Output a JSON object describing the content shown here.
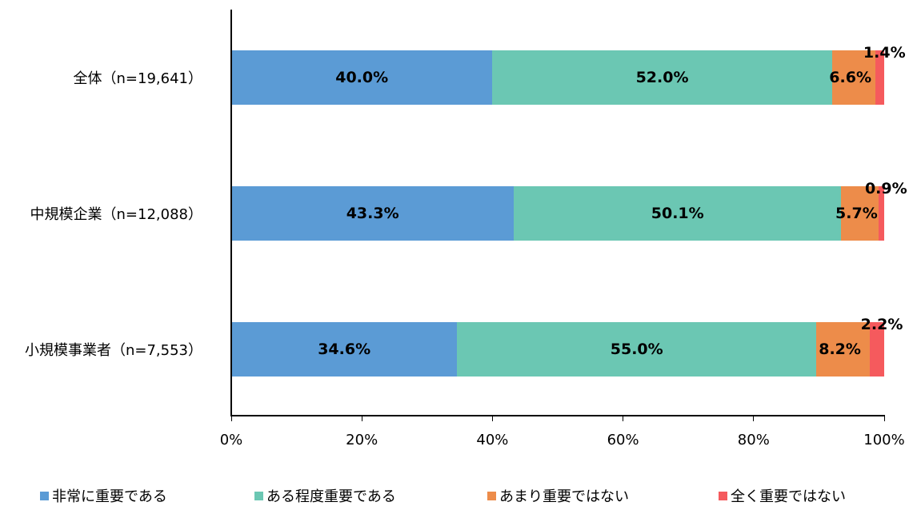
{
  "chart_data": {
    "type": "bar",
    "orientation": "horizontal",
    "stacked": true,
    "title": "",
    "xlabel": "",
    "ylabel": "",
    "xlim": [
      0,
      100
    ],
    "grid": false,
    "legend_position": "bottom",
    "x_ticks": [
      "0%",
      "20%",
      "40%",
      "60%",
      "80%",
      "100%"
    ],
    "categories": [
      "全体（n=19,641）",
      "中規模企業（n=12,088）",
      "小規模事業者（n=7,553）"
    ],
    "series": [
      {
        "name": "非常に重要である",
        "color": "#5b9bd5",
        "values": [
          40.0,
          43.3,
          34.6
        ],
        "labels": [
          "40.0%",
          "43.3%",
          "34.6%"
        ]
      },
      {
        "name": "ある程度重要である",
        "color": "#6bc7b3",
        "values": [
          52.0,
          50.1,
          55.0
        ],
        "labels": [
          "52.0%",
          "50.1%",
          "55.0%"
        ]
      },
      {
        "name": "あまり重要ではない",
        "color": "#ed8c4a",
        "values": [
          6.6,
          5.7,
          8.2
        ],
        "labels": [
          "6.6%",
          "5.7%",
          "8.2%"
        ]
      },
      {
        "name": "全く重要ではない",
        "color": "#f55a5d",
        "values": [
          1.4,
          0.9,
          2.2
        ],
        "labels": [
          "1.4%",
          "0.9%",
          "2.2%"
        ]
      }
    ]
  }
}
